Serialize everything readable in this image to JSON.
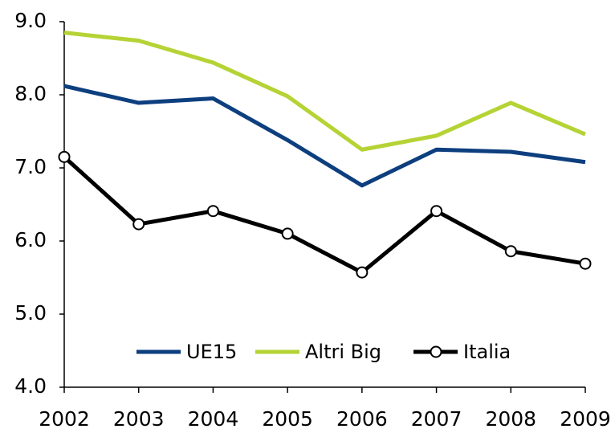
{
  "chart_data": {
    "type": "line",
    "categories": [
      "2002",
      "2003",
      "2004",
      "2005",
      "2006",
      "2007",
      "2008",
      "2009"
    ],
    "series": [
      {
        "name": "UE15",
        "color": "#0d3f7f",
        "values": [
          8.12,
          7.89,
          7.95,
          7.38,
          6.76,
          7.25,
          7.22,
          7.08
        ],
        "markers": false
      },
      {
        "name": "Altri Big",
        "color": "#b5d335",
        "values": [
          8.85,
          8.74,
          8.44,
          7.98,
          7.25,
          7.44,
          7.89,
          7.46
        ],
        "markers": false
      },
      {
        "name": "Italia",
        "color": "#000000",
        "values": [
          7.15,
          6.23,
          6.41,
          6.1,
          5.57,
          6.41,
          5.86,
          5.69
        ],
        "markers": true
      }
    ],
    "ylim": [
      4,
      9
    ],
    "yticks": [
      {
        "value": 4,
        "label": "4.0"
      },
      {
        "value": 5,
        "label": "5.0"
      },
      {
        "value": 6,
        "label": "6.0"
      },
      {
        "value": 7,
        "label": "7.0"
      },
      {
        "value": 8,
        "label": "8.0"
      },
      {
        "value": 9,
        "label": "9.0"
      }
    ],
    "grid": false,
    "legend": "bottom"
  }
}
